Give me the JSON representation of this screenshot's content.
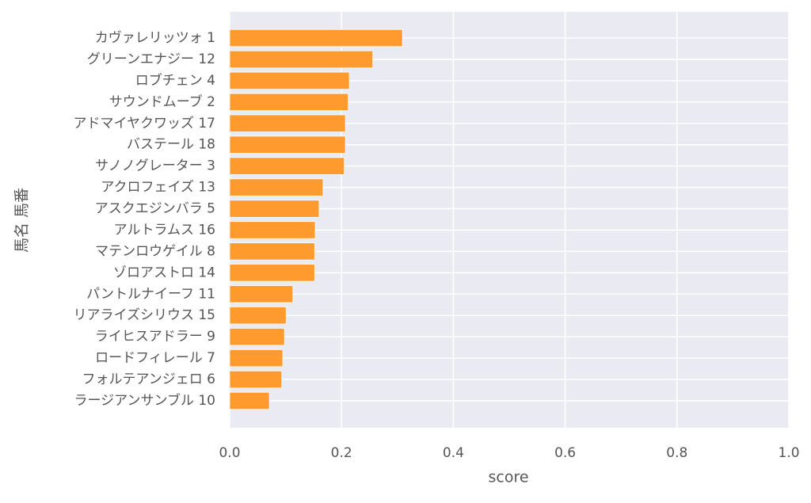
{
  "chart_data": {
    "type": "barh",
    "categories": [
      "カヴァレリッツォ 1",
      "グリーンエナジー 12",
      "ロブチェン 4",
      "サウンドムーブ 2",
      "アドマイヤクワッズ 17",
      "バステール 18",
      "サノノグレーター 3",
      "アクロフェイズ 13",
      "アスクエジンバラ 5",
      "アルトラムス 16",
      "マテンロウゲイル 8",
      "ゾロアストロ 14",
      "パントルナイーフ 11",
      "リアライズシリウス 15",
      "ライヒスアドラー 9",
      "ロードフィレール 7",
      "フォルテアンジェロ 6",
      "ラージアンサンブル 10"
    ],
    "values": [
      0.309,
      0.256,
      0.214,
      0.212,
      0.207,
      0.207,
      0.205,
      0.167,
      0.16,
      0.153,
      0.152,
      0.152,
      0.113,
      0.101,
      0.098,
      0.095,
      0.093,
      0.071
    ],
    "color": "#ff9a2e",
    "xlabel": "score",
    "ylabel": "馬名 馬番",
    "xlim": [
      0,
      1
    ],
    "xticks": [
      {
        "value": 0,
        "label": "0.0"
      },
      {
        "value": 0.2,
        "label": "0.2"
      },
      {
        "value": 0.4,
        "label": "0.4"
      },
      {
        "value": 0.6,
        "label": "0.6"
      },
      {
        "value": 0.8,
        "label": "0.8"
      },
      {
        "value": 1,
        "label": "1.0"
      }
    ],
    "grid": true
  }
}
